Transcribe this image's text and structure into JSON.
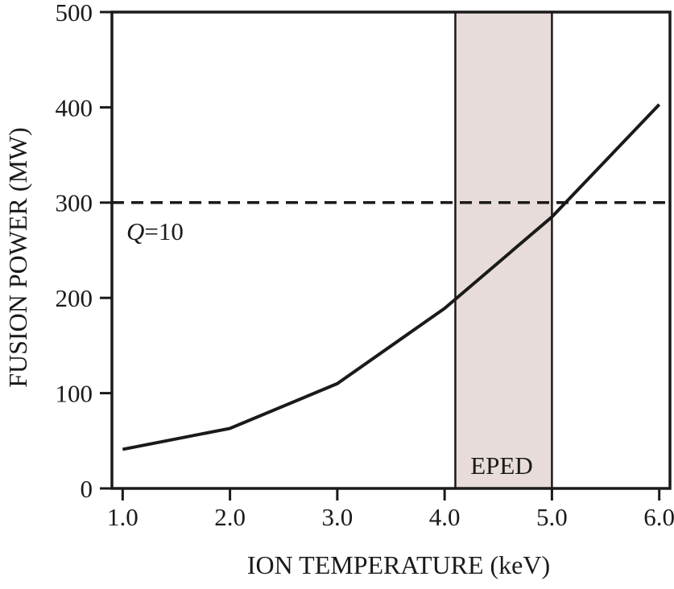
{
  "chart_data": {
    "type": "line",
    "title": "",
    "xlabel": "ION TEMPERATURE (keV)",
    "ylabel": "FUSION POWER (MW)",
    "xlim": [
      0.9,
      6.1
    ],
    "ylim": [
      0,
      500
    ],
    "grid": false,
    "legend": false,
    "background": "#ffffff",
    "ink_color": "#1a1a1a",
    "x_ticks": {
      "values": [
        1.0,
        2.0,
        3.0,
        4.0,
        5.0,
        6.0
      ],
      "labels": [
        "1.0",
        "2.0",
        "3.0",
        "4.0",
        "5.0",
        "6.0"
      ]
    },
    "y_ticks": {
      "values": [
        0,
        100,
        200,
        300,
        400,
        500
      ],
      "labels": [
        "0",
        "100",
        "200",
        "300",
        "400",
        "500"
      ]
    },
    "series": [
      {
        "name": "fusion-power-curve",
        "x": [
          1.0,
          2.0,
          3.0,
          4.0,
          5.0,
          6.0
        ],
        "y": [
          41,
          63,
          110,
          189,
          285,
          403
        ],
        "color": "#1a1a1a",
        "line_width": 4
      }
    ],
    "reference_line": {
      "y": 300,
      "style": "dashed",
      "color": "#1a1a1a",
      "label": {
        "italic_part": "Q",
        "normal_part": "=10"
      }
    },
    "band": {
      "from": 4.1,
      "to": 5.0,
      "label": "EPED",
      "fill": "#e8dcda",
      "edge_color": "#1a1a1a"
    }
  }
}
